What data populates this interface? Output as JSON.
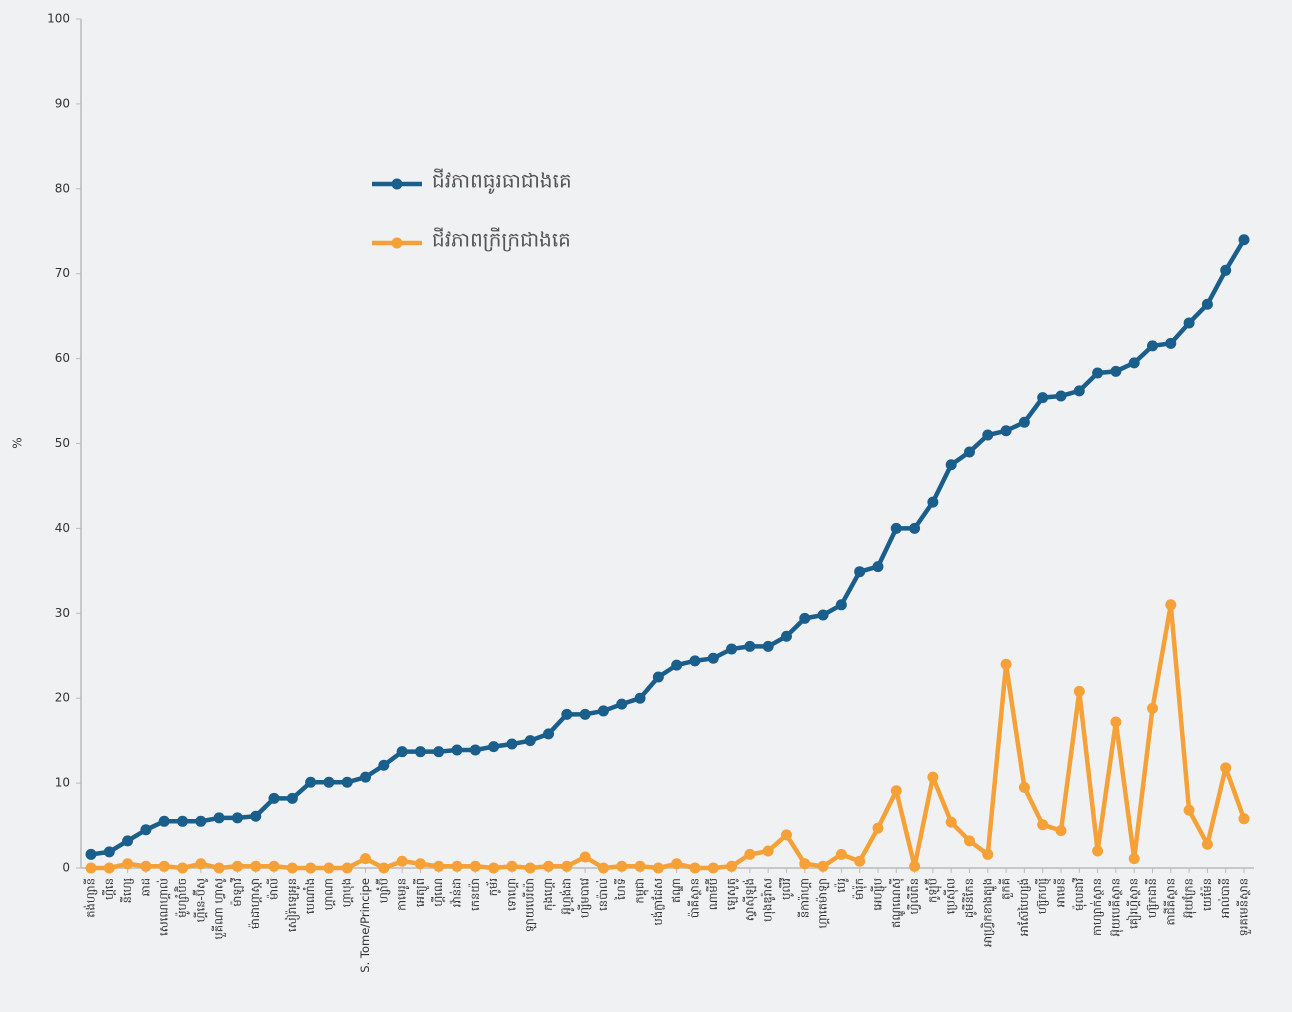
{
  "chart_data": {
    "type": "line",
    "y_label": "%",
    "categories": [
      "តង់ហ្សានី",
      "ហ្គីនេ",
      "នីហ្សេ",
      "ឆាដ",
      "សេណេហ្គាល់",
      "ម៉ូហ្សាំប៊ិច",
      "ហ្គីនេ-ប៊ីសូ",
      "បួគីណា ហ្វាសូ",
      "ម៉ាឡាវី",
      "ម៉ាដាហ្គាស្កា",
      "ម៉ាលី",
      "សៀរ៉ាឡេអូន",
      "បេណាំង",
      "ហ្គាណា",
      "ហ្គាបុង",
      "S. Tome/Principe",
      "ហ្សាំប៊ី",
      "កាមេរូន",
      "អេត្យូពី",
      "ហ្គីណេ",
      "រវ៉ាន់ដា",
      "កេនយ៉ា",
      "កូម័រ",
      "ទោហ្គោ",
      "ឡាយបេរីយ៉ា",
      "កុងហ្គោ",
      "អ៊ូហ្គង់ដា",
      "ហ្សីមបាវេ",
      "នេប៉ាល់",
      "ហៃទី",
      "កម្ពុជា",
      "បង់ក្លាដែស",
      "ឥណ្ឌា",
      "ប៉ាគីស្ថាន",
      "ណាមីប៊ី",
      "ឡេសូតូ",
      "ស្វាស៊ីឡង់",
      "ហុងឌូរ៉ាស",
      "បូលីវី",
      "នីការ៉ាហ្គា",
      "ហ្គាតេម៉ាឡា",
      "ប៉េរូ",
      "ម៉ារ៉ុក",
      "អេហ្ស៊ីប",
      "ឥណ្ឌូណេស៊ី",
      "ហ្វីលីពីន",
      "កូឡុំប៊ី",
      "ប្រេស៊ីល",
      "ដូមីនីកែន",
      "អាហ្វ្រិកខាងត្បូង",
      "តួកគី",
      "អាស៊ែបៃហ្សង់",
      "ហ្ស៊កហ្ស៊ី",
      "អាមេនី",
      "ម៉ុលដាវី",
      "កាហ្សាក់ស្ថាន",
      "អ៊ុយបេគីស្ថាន",
      "គៀរហ្គីស្ថាន",
      "ហ្ស៊កដានី",
      "តាជីគីស្ថាន",
      "អ៊ុយក្រែន",
      "យេម៉ែន",
      "អាល់បានី",
      "ទួរគមេនីស្ថាន"
    ],
    "series": [
      {
        "name": "ជីវភាពធូរធាជាងគេ",
        "color": "#1a5e8c",
        "values": [
          1.6,
          1.9,
          3.2,
          4.5,
          5.5,
          5.5,
          5.5,
          5.9,
          5.9,
          6.1,
          8.2,
          8.2,
          10.1,
          10.1,
          10.1,
          10.7,
          12.1,
          13.7,
          13.7,
          13.7,
          13.9,
          13.9,
          14.3,
          14.6,
          15.0,
          15.8,
          18.1,
          18.1,
          18.5,
          19.3,
          20.0,
          22.5,
          23.9,
          24.4,
          24.7,
          25.8,
          26.1,
          26.1,
          27.3,
          29.4,
          29.8,
          31.0,
          34.9,
          35.5,
          40.0,
          40.0,
          43.1,
          47.5,
          49.0,
          51.0,
          51.5,
          52.5,
          55.4,
          55.6,
          56.2,
          58.3,
          58.5,
          59.5,
          61.5,
          61.8,
          64.2,
          66.4,
          70.4,
          74.0
        ]
      },
      {
        "name": "ជីវភាពក្រីក្រជាងគេ",
        "color": "#f5a137",
        "values": [
          0,
          0,
          0.5,
          0.2,
          0.2,
          0,
          0.5,
          0,
          0.2,
          0.2,
          0.2,
          0,
          0,
          0,
          0,
          1.1,
          0,
          0.8,
          0.5,
          0.2,
          0.2,
          0.2,
          0,
          0.2,
          0,
          0.2,
          0.2,
          1.3,
          0,
          0.2,
          0.2,
          0,
          0.5,
          0,
          0,
          0.2,
          1.6,
          2.0,
          3.9,
          0.5,
          0.2,
          1.6,
          0.8,
          4.7,
          9.1,
          0.2,
          10.7,
          5.4,
          3.2,
          1.6,
          24.0,
          9.5,
          5.1,
          4.4,
          20.8,
          2.0,
          17.2,
          1.1,
          18.8,
          31.0,
          6.8,
          2.8,
          11.8,
          5.8
        ]
      }
    ],
    "ylim": [
      0,
      100
    ],
    "yticks": [
      0,
      10,
      20,
      30,
      40,
      50,
      60,
      70,
      80,
      90,
      100
    ]
  }
}
